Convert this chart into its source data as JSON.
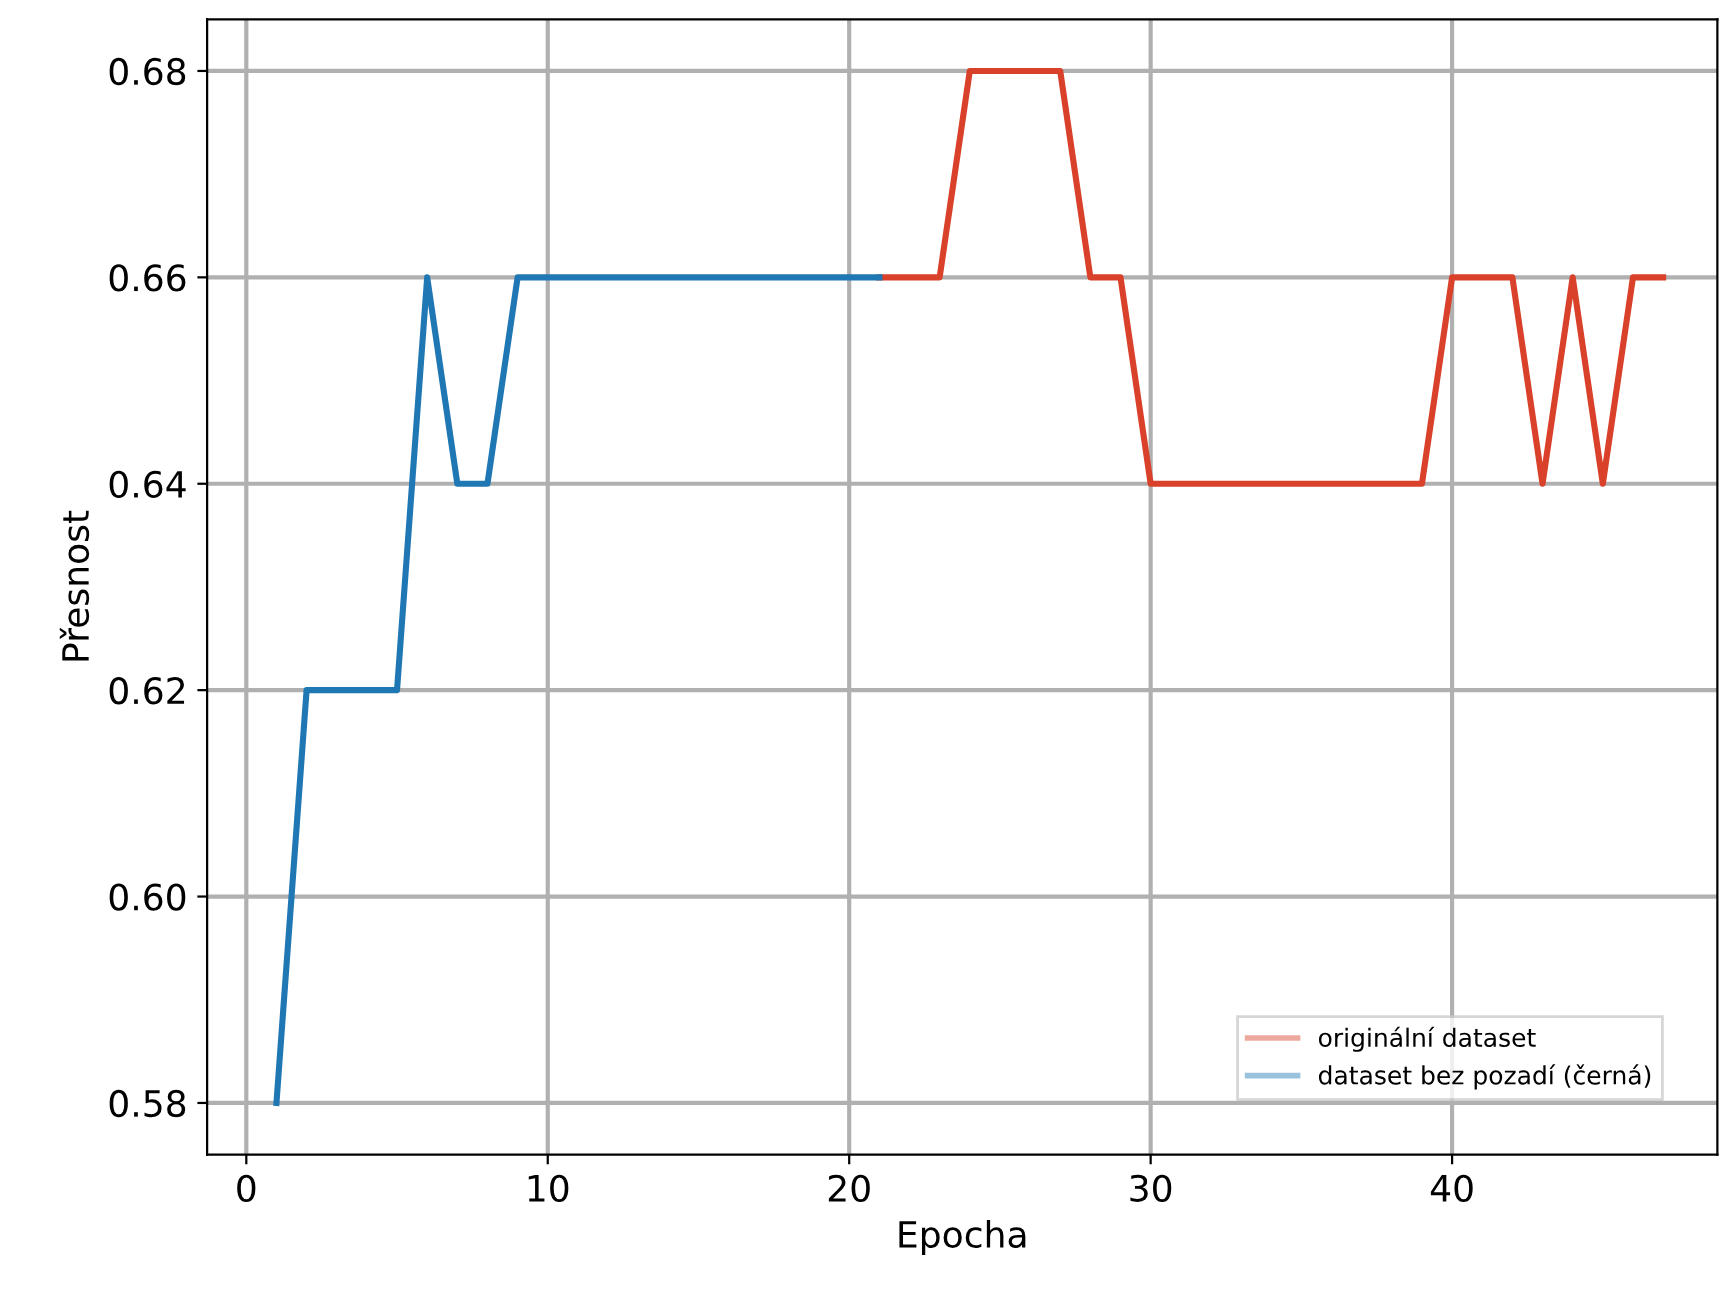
{
  "chart_data": {
    "type": "line",
    "xlabel": "Epocha",
    "ylabel": "Přesnost",
    "series": [
      {
        "name": "originální dataset",
        "color": "#d9412b",
        "x": [
          21,
          22,
          23,
          24,
          25,
          26,
          27,
          28,
          29,
          30,
          31,
          32,
          33,
          34,
          35,
          36,
          37,
          38,
          39,
          40,
          41,
          42,
          43,
          44,
          45,
          46,
          47
        ],
        "values": [
          0.66,
          0.66,
          0.66,
          0.68,
          0.68,
          0.68,
          0.68,
          0.66,
          0.66,
          0.64,
          0.64,
          0.64,
          0.64,
          0.64,
          0.64,
          0.64,
          0.64,
          0.64,
          0.64,
          0.66,
          0.66,
          0.66,
          0.64,
          0.66,
          0.64,
          0.66,
          0.66
        ]
      },
      {
        "name": "dataset bez pozadí (černá)",
        "color": "#1f77b4",
        "x": [
          1,
          2,
          3,
          4,
          5,
          6,
          7,
          8,
          9,
          10,
          11,
          12,
          13,
          14,
          15,
          16,
          17,
          18,
          19,
          20,
          21
        ],
        "values": [
          0.58,
          0.62,
          0.62,
          0.62,
          0.62,
          0.66,
          0.64,
          0.64,
          0.66,
          0.66,
          0.66,
          0.66,
          0.66,
          0.66,
          0.66,
          0.66,
          0.66,
          0.66,
          0.66,
          0.66,
          0.66
        ]
      }
    ],
    "xlim": [
      -1.3,
      48.8
    ],
    "ylim": [
      0.575,
      0.685
    ],
    "xticks": [
      0,
      10,
      20,
      30,
      40
    ],
    "yticks": [
      {
        "value": 0.58,
        "label": "0.58"
      },
      {
        "value": 0.6,
        "label": "0.60"
      },
      {
        "value": 0.62,
        "label": "0.62"
      },
      {
        "value": 0.64,
        "label": "0.64"
      },
      {
        "value": 0.66,
        "label": "0.66"
      },
      {
        "value": 0.68,
        "label": "0.68"
      }
    ],
    "grid": true,
    "legend": "lower right",
    "marker": "none",
    "line_style": "solid"
  }
}
